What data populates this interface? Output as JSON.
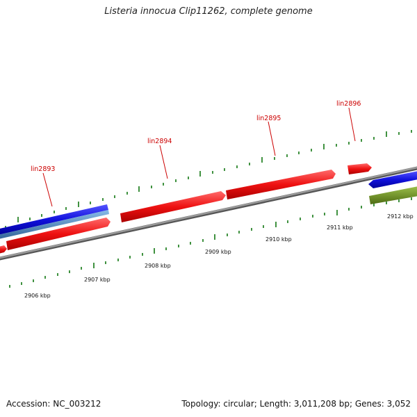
{
  "title": "Listeria innocua Clip11262, complete genome",
  "footer": {
    "accession": "Accession: NC_003212",
    "summary": "Topology: circular; Length: 3,011,208 bp; Genes: 3,052"
  },
  "colors": {
    "forward_gene": "#ee1111",
    "reverse_gene": "#1111dd",
    "reverse_gene_light": "#5599cc",
    "rna_gene": "#6b8e23",
    "backbone": "#808080",
    "tick": "#117711",
    "label": "#cc0000"
  },
  "gene_labels": [
    "lin2893",
    "lin2894",
    "lin2895",
    "lin2896"
  ],
  "kbp_labels": [
    "2906 kbp",
    "2907 kbp",
    "2908 kbp",
    "2909 kbp",
    "2910 kbp",
    "2911 kbp",
    "2912 kbp"
  ]
}
